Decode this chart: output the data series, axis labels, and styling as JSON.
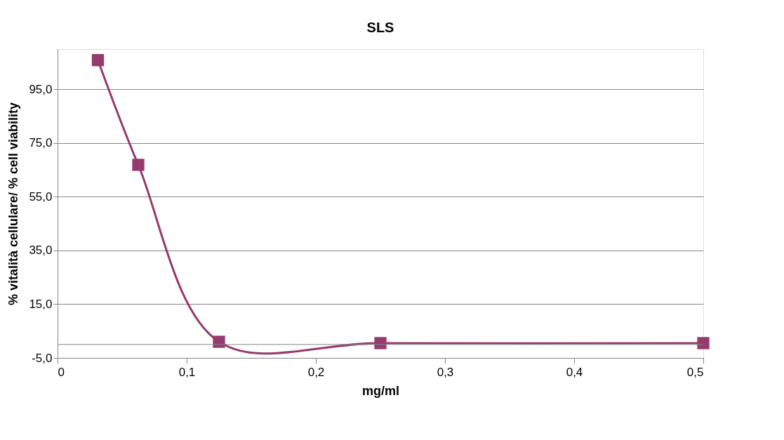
{
  "chart_data": {
    "type": "line",
    "title": "SLS",
    "xlabel": "mg/ml",
    "ylabel": "% vitalità cellulare/ % cell viability",
    "x": [
      0.03125,
      0.0625,
      0.125,
      0.25,
      0.5
    ],
    "series": [
      {
        "color": "#953b6d",
        "values": [
          105.9,
          66.9,
          1.0,
          0.5,
          0.5
        ]
      }
    ],
    "xlim": [
      0,
      0.5
    ],
    "xticks": [
      {
        "value": 0,
        "label": "0"
      },
      {
        "value": 0.1,
        "label": "0,1"
      },
      {
        "value": 0.2,
        "label": "0,2"
      },
      {
        "value": 0.3,
        "label": "0,3"
      },
      {
        "value": 0.4,
        "label": "0,4"
      },
      {
        "value": 0.5,
        "label": "0,5"
      }
    ],
    "ylim": [
      -5,
      110
    ],
    "yticks": [
      {
        "value": -5,
        "label": "-5,0"
      },
      {
        "value": 15,
        "label": "15,0"
      },
      {
        "value": 35,
        "label": "35,0"
      },
      {
        "value": 55,
        "label": "55,0"
      },
      {
        "value": 75,
        "label": "75,0"
      },
      {
        "value": 95,
        "label": "95,0"
      }
    ],
    "ref_lines": [
      {
        "axis": "y",
        "value": 0,
        "color": "#868686"
      }
    ],
    "grid": "y",
    "marker": "square",
    "line_style": "solid"
  }
}
